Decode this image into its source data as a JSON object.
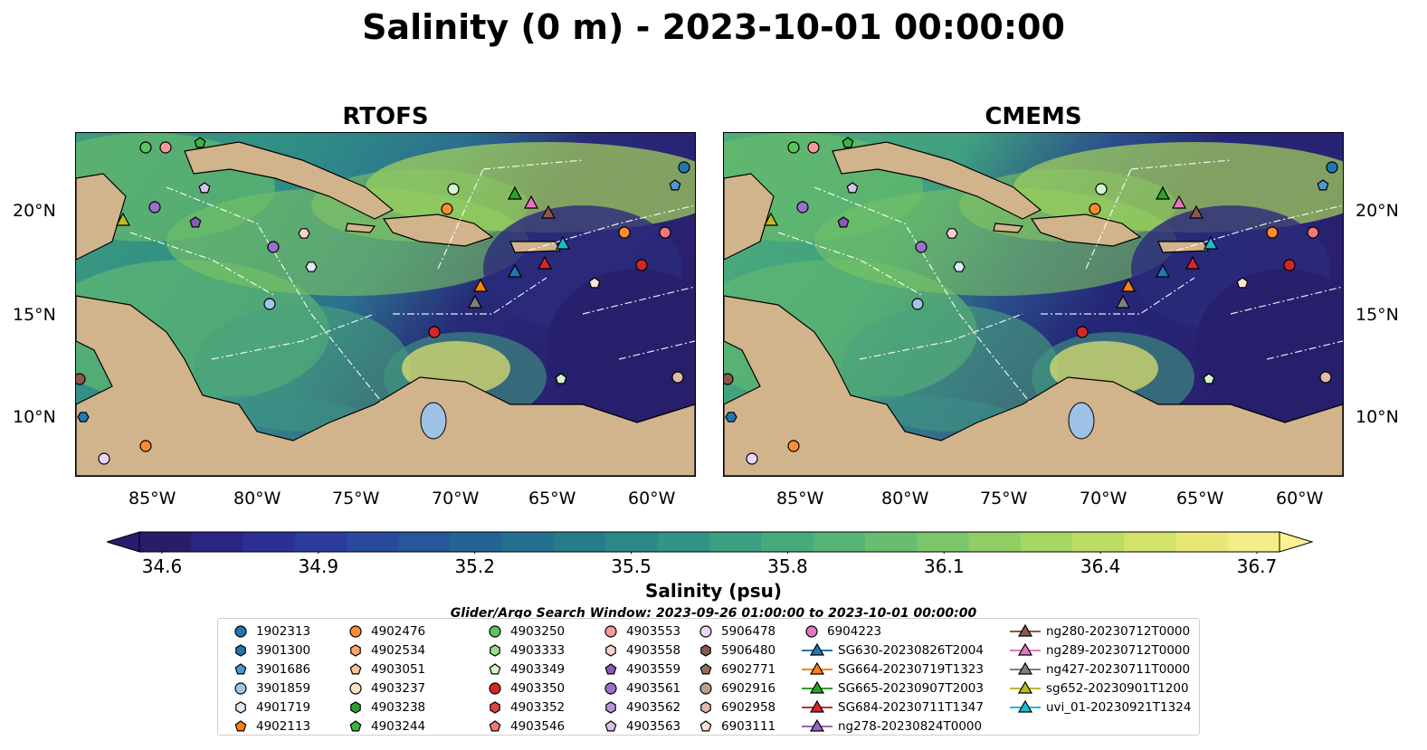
{
  "title": "Salinity (0 m) - 2023-10-01 00:00:00",
  "panels": [
    {
      "title": "RTOFS"
    },
    {
      "title": "CMEMS"
    }
  ],
  "lon_ticks": [
    "85°W",
    "80°W",
    "75°W",
    "70°W",
    "65°W",
    "60°W"
  ],
  "lat_ticks": [
    "20°N",
    "15°N",
    "10°N"
  ],
  "colorbar": {
    "label": "Salinity (psu)",
    "ticks": [
      "34.6",
      "34.9",
      "35.2",
      "35.5",
      "35.8",
      "36.1",
      "36.4",
      "36.7"
    ],
    "min": 34.6,
    "max": 36.7
  },
  "search_window": "Glider/Argo Search Window: 2023-09-26 01:00:00 to 2023-10-01 00:00:00",
  "legend": [
    {
      "label": "1902313",
      "marker": "circle",
      "color": "#1f77b4"
    },
    {
      "label": "3901300",
      "marker": "hexagon",
      "color": "#1f77b4"
    },
    {
      "label": "3901686",
      "marker": "pentagon",
      "color": "#4a9ad1"
    },
    {
      "label": "3901859",
      "marker": "circle",
      "color": "#9ec6e6"
    },
    {
      "label": "4901719",
      "marker": "hexagon",
      "color": "#ddeaf7"
    },
    {
      "label": "4902113",
      "marker": "pentagon",
      "color": "#ff7f0e"
    },
    {
      "label": "4902476",
      "marker": "circle",
      "color": "#ff8c2e"
    },
    {
      "label": "4902534",
      "marker": "hexagon",
      "color": "#ffa566"
    },
    {
      "label": "4903051",
      "marker": "pentagon",
      "color": "#ffc594"
    },
    {
      "label": "4903237",
      "marker": "circle",
      "color": "#ffe2c4"
    },
    {
      "label": "4903238",
      "marker": "hexagon",
      "color": "#2ca02c"
    },
    {
      "label": "4903244",
      "marker": "pentagon",
      "color": "#3cb43c"
    },
    {
      "label": "4903250",
      "marker": "circle",
      "color": "#5cc45c"
    },
    {
      "label": "4903333",
      "marker": "hexagon",
      "color": "#98df8a"
    },
    {
      "label": "4903349",
      "marker": "pentagon",
      "color": "#d5f5cf"
    },
    {
      "label": "4903350",
      "marker": "circle",
      "color": "#d62728"
    },
    {
      "label": "4903352",
      "marker": "hexagon",
      "color": "#de4545"
    },
    {
      "label": "4903546",
      "marker": "pentagon",
      "color": "#f07878"
    },
    {
      "label": "4903553",
      "marker": "circle",
      "color": "#f59a9a"
    },
    {
      "label": "4903558",
      "marker": "hexagon",
      "color": "#fbd0d0"
    },
    {
      "label": "4903559",
      "marker": "pentagon",
      "color": "#8a5bbd"
    },
    {
      "label": "4903561",
      "marker": "circle",
      "color": "#9b6fcc"
    },
    {
      "label": "4903562",
      "marker": "hexagon",
      "color": "#b496dc"
    },
    {
      "label": "4903563",
      "marker": "pentagon",
      "color": "#d7c2ef"
    },
    {
      "label": "5906478",
      "marker": "circle",
      "color": "#e8d6fa"
    },
    {
      "label": "5906480",
      "marker": "hexagon",
      "color": "#8c564b"
    },
    {
      "label": "6902771",
      "marker": "pentagon",
      "color": "#9c6a5e"
    },
    {
      "label": "6902916",
      "marker": "circle",
      "color": "#c49c94"
    },
    {
      "label": "6902958",
      "marker": "hexagon",
      "color": "#e5b8a8"
    },
    {
      "label": "6903111",
      "marker": "pentagon",
      "color": "#fbe3d6"
    },
    {
      "label": "6904223",
      "marker": "circle",
      "color": "#e377c2"
    },
    {
      "label": "SG630-20230826T2004",
      "marker": "triangle",
      "color": "#1f77b4",
      "line": true
    },
    {
      "label": "SG664-20230719T1323",
      "marker": "triangle",
      "color": "#ff7f0e",
      "line": true
    },
    {
      "label": "SG665-20230907T2003",
      "marker": "triangle",
      "color": "#2ca02c",
      "line": true
    },
    {
      "label": "SG684-20230711T1347",
      "marker": "triangle",
      "color": "#d62728",
      "line": true
    },
    {
      "label": "ng278-20230824T0000",
      "marker": "triangle",
      "color": "#9467bd",
      "line": true
    },
    {
      "label": "ng280-20230712T0000",
      "marker": "triangle",
      "color": "#8c564b",
      "line": true
    },
    {
      "label": "ng289-20230712T0000",
      "marker": "triangle",
      "color": "#e377c2",
      "line": true
    },
    {
      "label": "ng427-20230711T0000",
      "marker": "triangle",
      "color": "#7f7f7f",
      "line": true
    },
    {
      "label": "sg652-20230901T1200",
      "marker": "triangle",
      "color": "#bcbd22",
      "line": true
    },
    {
      "label": "uvi_01-20230921T1324",
      "marker": "triangle",
      "color": "#17becf",
      "line": true
    }
  ]
}
